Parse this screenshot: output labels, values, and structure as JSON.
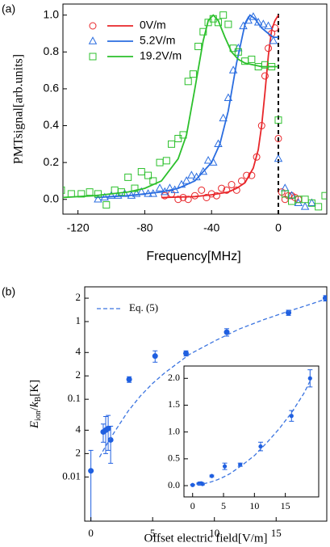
{
  "chart_data": [
    {
      "type": "scatter",
      "panel_label": "(a)",
      "xlabel": "Frequency[MHz]",
      "ylabel": "PMTsignal[arb.units]",
      "xlim": [
        -129,
        29
      ],
      "ylim": [
        -0.08,
        1.06
      ],
      "xticks": [
        -120,
        -80,
        -40,
        0
      ],
      "yticks": [
        {
          "value": 0,
          "label": "0.0"
        },
        {
          "value": 0.2,
          "label": "0.2"
        },
        {
          "value": 0.4,
          "label": "0.4"
        },
        {
          "value": 0.6,
          "label": "0.6"
        },
        {
          "value": 0.8,
          "label": "0.8"
        },
        {
          "value": 1,
          "label": "1.0"
        }
      ],
      "vline": 0,
      "legend": "upper left",
      "series": [
        {
          "name": "0V/m",
          "color": "#e8262a",
          "marker": "circle",
          "x": [
            -68,
            -64,
            -60,
            -57,
            -54,
            -50,
            -46,
            -43,
            -40,
            -37,
            -34,
            -31,
            -28,
            -25,
            -22,
            -19,
            -16,
            -13,
            -10,
            -8,
            -6,
            -4,
            -2,
            0,
            2,
            4,
            6,
            8,
            10,
            12
          ],
          "values": [
            0.02,
            0.03,
            0.0,
            0.01,
            0.0,
            0.02,
            0.05,
            0.01,
            0.03,
            0.02,
            0.06,
            0.05,
            0.08,
            0.05,
            0.1,
            0.13,
            0.13,
            0.23,
            0.4,
            0.67,
            0.82,
            0.9,
            0.93,
            0.33,
            0.04,
            0.0,
            0.02,
            0.02,
            0.01,
            0.0
          ],
          "fit": {
            "x": [
              -70,
              -50,
              -40,
              -30,
              -25,
              -20,
              -15,
              -12,
              -10,
              -8,
              -6,
              -4,
              -2,
              0
            ],
            "values": [
              0.01,
              0.015,
              0.025,
              0.04,
              0.06,
              0.09,
              0.17,
              0.27,
              0.4,
              0.58,
              0.78,
              0.92,
              0.97,
              1.0
            ]
          }
        },
        {
          "name": "5.2V/m",
          "color": "#2a6de0",
          "marker": "triangle",
          "x": [
            -108,
            -104,
            -100,
            -96,
            -92,
            -88,
            -85,
            -82,
            -78,
            -75,
            -71,
            -68,
            -65,
            -62,
            -58,
            -55,
            -52,
            -49,
            -45,
            -42,
            -39,
            -36,
            -33,
            -30,
            -27,
            -24,
            -21,
            -18,
            -15,
            -12,
            -9,
            -6,
            -3,
            0,
            4,
            8,
            12,
            16,
            20
          ],
          "values": [
            0.0,
            0.01,
            0.02,
            0.02,
            0.03,
            0.02,
            0.03,
            0.04,
            0.03,
            0.03,
            0.06,
            0.04,
            0.06,
            0.05,
            0.08,
            0.1,
            0.13,
            0.12,
            0.15,
            0.21,
            0.2,
            0.3,
            0.44,
            0.55,
            0.7,
            0.82,
            0.94,
            0.97,
            0.99,
            0.96,
            0.95,
            0.94,
            0.86,
            0.22,
            0.06,
            0.02,
            -0.02,
            -0.04,
            -0.02
          ],
          "fit": {
            "x": [
              -110,
              -90,
              -70,
              -60,
              -50,
              -40,
              -35,
              -30,
              -25,
              -20,
              -17,
              -14,
              -10,
              -6,
              -3,
              0
            ],
            "values": [
              0.01,
              0.02,
              0.04,
              0.06,
              0.1,
              0.2,
              0.3,
              0.48,
              0.74,
              0.95,
              1.0,
              0.98,
              0.93,
              0.9,
              0.88,
              0.88
            ]
          }
        },
        {
          "name": "19.2V/m",
          "color": "#2cc02c",
          "marker": "square",
          "x": [
            -130,
            -124,
            -118,
            -113,
            -108,
            -103,
            -98,
            -94,
            -90,
            -86,
            -82,
            -78,
            -75,
            -71,
            -67,
            -64,
            -60,
            -57,
            -54,
            -51,
            -48,
            -45,
            -42,
            -39,
            -36,
            -33,
            -30,
            -27,
            -24,
            -20,
            -16,
            -12,
            -8,
            -4,
            0,
            4,
            8,
            12,
            16,
            20,
            24,
            28
          ],
          "values": [
            0.05,
            0.03,
            0.03,
            0.04,
            0.03,
            -0.03,
            0.05,
            0.04,
            0.12,
            0.06,
            0.15,
            0.13,
            0.1,
            0.2,
            0.21,
            0.3,
            0.33,
            0.35,
            0.64,
            0.68,
            0.83,
            0.91,
            0.96,
            0.98,
            0.96,
            1.0,
            0.95,
            0.82,
            0.8,
            0.75,
            0.76,
            0.72,
            0.73,
            0.72,
            0.43,
            0.03,
            -0.01,
            0.0,
            0.0,
            -0.02,
            -0.04,
            0.02
          ],
          "fit": {
            "x": [
              -130,
              -110,
              -90,
              -80,
              -70,
              -60,
              -55,
              -50,
              -45,
              -42,
              -39,
              -36,
              -32,
              -28,
              -24,
              -20,
              -15,
              -10,
              -5,
              0
            ],
            "values": [
              0.01,
              0.02,
              0.04,
              0.06,
              0.1,
              0.22,
              0.35,
              0.6,
              0.86,
              0.97,
              1.0,
              0.97,
              0.88,
              0.8,
              0.76,
              0.74,
              0.73,
              0.72,
              0.72,
              0.72
            ]
          }
        }
      ]
    },
    {
      "type": "scatter",
      "panel_label": "(b)",
      "xlabel": "Offset electric field[V/m]",
      "ylabel": [
        "E",
        "ion",
        "/",
        "k",
        "B",
        "[K]"
      ],
      "xlim": [
        -0.5,
        19.1
      ],
      "ylim": [
        0.0027,
        2.8
      ],
      "log_y": true,
      "xticks": [
        0,
        5,
        10,
        15
      ],
      "yticks": [
        0.01,
        {
          "value": 0.02,
          "label": "2"
        },
        {
          "value": 0.04,
          "label": "4"
        },
        0.1,
        {
          "value": 0.2,
          "label": "2"
        },
        {
          "value": 0.4,
          "label": "4"
        },
        1,
        2
      ],
      "legend": "upper left",
      "series": [
        {
          "color": "#1f5fe0",
          "marker": "dot",
          "x": [
            0,
            1.0,
            1.2,
            1.4,
            1.6,
            3.1,
            5.2,
            7.7,
            11,
            16,
            19
          ],
          "values": [
            0.012,
            0.038,
            0.04,
            0.042,
            0.03,
            0.18,
            0.36,
            0.39,
            0.73,
            1.3,
            2.0
          ],
          "errors": [
            0.01,
            0.01,
            0.02,
            0.02,
            0.015,
            0.015,
            0.06,
            0.03,
            0.08,
            0.1,
            0.16
          ]
        },
        {
          "name": "Eq. (5)",
          "color": "#3b74e0",
          "dash": true,
          "x": [
            0.7,
            1,
            1.5,
            2,
            3,
            4,
            5,
            6,
            8,
            10,
            12,
            14,
            16,
            18,
            19
          ],
          "values": [
            0.018,
            0.022,
            0.03,
            0.04,
            0.07,
            0.11,
            0.16,
            0.22,
            0.38,
            0.56,
            0.8,
            1.06,
            1.36,
            1.72,
            1.95
          ]
        }
      ]
    },
    {
      "type": "scatter",
      "xlim": [
        -1.4,
        20.4
      ],
      "ylim": [
        -0.21,
        2.23
      ],
      "xticks": [
        0,
        5,
        10,
        15
      ],
      "yticks": [
        {
          "value": 0,
          "label": "0.0"
        },
        {
          "value": 0.5,
          "label": "0.5"
        },
        {
          "value": 1,
          "label": "1.0"
        },
        {
          "value": 1.5,
          "label": "1.5"
        },
        {
          "value": 2,
          "label": "2.0"
        }
      ],
      "series": [
        {
          "color": "#1f5fe0",
          "marker": "dot",
          "x": [
            0,
            1.0,
            1.2,
            1.4,
            1.6,
            3.1,
            5.2,
            7.7,
            11,
            16,
            19
          ],
          "values": [
            0.012,
            0.038,
            0.04,
            0.042,
            0.03,
            0.18,
            0.36,
            0.39,
            0.73,
            1.3,
            2.0
          ],
          "errors": [
            0.01,
            0.01,
            0.02,
            0.02,
            0.015,
            0.015,
            0.06,
            0.03,
            0.08,
            0.1,
            0.16
          ]
        },
        {
          "color": "#3b74e0",
          "dash": true,
          "x": [
            0.7,
            1,
            1.5,
            2,
            3,
            4,
            5,
            6,
            8,
            10,
            12,
            14,
            16,
            18,
            19
          ],
          "values": [
            0.018,
            0.022,
            0.03,
            0.04,
            0.07,
            0.11,
            0.16,
            0.22,
            0.38,
            0.56,
            0.8,
            1.06,
            1.36,
            1.72,
            1.95
          ]
        }
      ]
    }
  ]
}
